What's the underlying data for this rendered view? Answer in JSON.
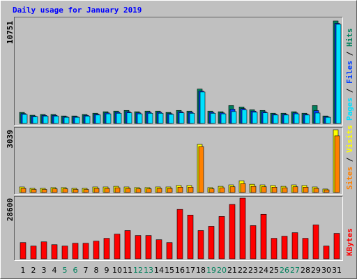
{
  "chart_data": [
    {
      "type": "bar",
      "title": "Daily usage for January 2019",
      "legend_separator": " / ",
      "series": [
        {
          "name": "Hits",
          "color": "#00805c",
          "values": [
            1160,
            870,
            940,
            940,
            790,
            790,
            940,
            1080,
            1230,
            1300,
            1370,
            1230,
            1300,
            1300,
            1160,
            1370,
            1300,
            3610,
            1300,
            1230,
            1880,
            1730,
            1440,
            1370,
            1080,
            1080,
            1230,
            1080,
            1880,
            790,
            10751
          ]
        },
        {
          "name": "Files",
          "color": "#0040ff",
          "values": [
            1040,
            780,
            850,
            850,
            710,
            710,
            850,
            970,
            1110,
            1170,
            1230,
            1110,
            1170,
            1170,
            1040,
            1230,
            1170,
            3400,
            1170,
            1110,
            1500,
            1560,
            1300,
            1230,
            970,
            970,
            1110,
            970,
            1350,
            710,
            10500
          ]
        },
        {
          "name": "Pages",
          "color": "#00e0ff",
          "values": [
            950,
            710,
            770,
            770,
            650,
            650,
            770,
            890,
            1010,
            1070,
            1120,
            1010,
            1070,
            1070,
            950,
            1120,
            1070,
            3300,
            1070,
            1010,
            1250,
            1420,
            1180,
            1120,
            890,
            890,
            1010,
            890,
            1100,
            650,
            10400
          ]
        }
      ],
      "ylim": [
        0,
        10751
      ],
      "yticks": [
        10751
      ]
    },
    {
      "type": "bar",
      "legend_separator": " / ",
      "series": [
        {
          "name": "Visits",
          "color": "#ffff00",
          "values": [
            270,
            200,
            200,
            240,
            240,
            200,
            200,
            270,
            270,
            300,
            270,
            240,
            240,
            270,
            270,
            340,
            340,
            2330,
            240,
            300,
            370,
            570,
            400,
            370,
            340,
            300,
            370,
            340,
            270,
            170,
            3039
          ]
        },
        {
          "name": "Sites",
          "color": "#ff8000",
          "values": [
            200,
            150,
            150,
            180,
            180,
            150,
            150,
            200,
            200,
            230,
            200,
            180,
            180,
            200,
            200,
            260,
            260,
            2220,
            180,
            230,
            280,
            430,
            300,
            280,
            260,
            230,
            280,
            260,
            200,
            130,
            2740
          ]
        }
      ],
      "ylim": [
        0,
        3039
      ],
      "yticks": [
        3039
      ]
    },
    {
      "type": "bar",
      "legend_separator": " / ",
      "categories": [
        "1",
        "2",
        "3",
        "4",
        "5",
        "6",
        "7",
        "8",
        "9",
        "10",
        "11",
        "12",
        "13",
        "14",
        "15",
        "16",
        "17",
        "18",
        "19",
        "20",
        "21",
        "22",
        "23",
        "24",
        "25",
        "26",
        "27",
        "28",
        "29",
        "30",
        "31"
      ],
      "category_colors": [
        "#000000",
        "#000000",
        "#000000",
        "#000000",
        "#00805c",
        "#00805c",
        "#000000",
        "#000000",
        "#000000",
        "#000000",
        "#000000",
        "#00805c",
        "#00805c",
        "#000000",
        "#000000",
        "#000000",
        "#000000",
        "#000000",
        "#00805c",
        "#00805c",
        "#000000",
        "#000000",
        "#000000",
        "#000000",
        "#000000",
        "#00805c",
        "#00805c",
        "#000000",
        "#000000",
        "#000000",
        "#000000"
      ],
      "series": [
        {
          "name": "KBytes",
          "color": "#ff0000",
          "values": [
            7650,
            5990,
            7980,
            6650,
            5990,
            7320,
            7320,
            8310,
            9640,
            11640,
            13300,
            10970,
            10970,
            8980,
            7650,
            23280,
            20620,
            13300,
            15300,
            19950,
            25610,
            28600,
            15630,
            20950,
            9640,
            10640,
            12300,
            9640,
            15960,
            5990,
            11970
          ]
        }
      ],
      "ylim": [
        0,
        28600
      ],
      "yticks": [
        28600
      ]
    }
  ]
}
